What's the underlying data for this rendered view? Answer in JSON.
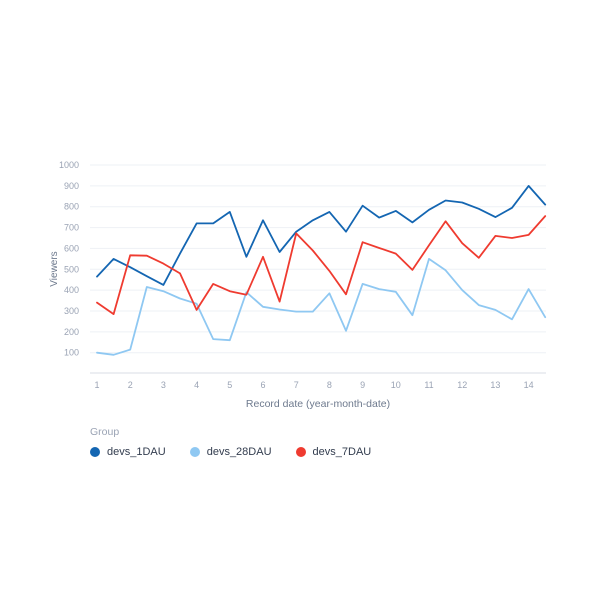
{
  "legend": {
    "title": "Group",
    "items": [
      {
        "label": "devs_1DAU",
        "color": "#1466b2"
      },
      {
        "label": "devs_28DAU",
        "color": "#8fc8f2"
      },
      {
        "label": "devs_7DAU",
        "color": "#ef3b30"
      }
    ]
  },
  "chart_data": {
    "type": "line",
    "title": "",
    "xlabel": "Record date (year-month-date)",
    "ylabel": "Viewers",
    "x_tick_labels": [
      "1",
      "2",
      "3",
      "4",
      "5",
      "6",
      "7",
      "8",
      "9",
      "10",
      "11",
      "12",
      "13",
      "14"
    ],
    "y_tick_labels": [
      "100",
      "200",
      "300",
      "400",
      "500",
      "600",
      "700",
      "800",
      "900",
      "1000"
    ],
    "y_ticks": [
      100,
      200,
      300,
      400,
      500,
      600,
      700,
      800,
      900,
      1000
    ],
    "ylim": [
      0,
      1000
    ],
    "xlim": [
      1,
      14.5
    ],
    "grid": "horizontal-only",
    "legend_position": "bottom-left",
    "x": [
      1,
      1.5,
      2,
      2.5,
      3,
      3.5,
      4,
      4.5,
      5,
      5.5,
      6,
      6.5,
      7,
      7.5,
      8,
      8.5,
      9,
      9.5,
      10,
      10.5,
      11,
      11.5,
      12,
      12.5,
      13,
      13.5,
      14,
      14.5
    ],
    "series": [
      {
        "name": "devs_1DAU",
        "color": "#1466b2",
        "values": [
          465,
          550,
          510,
          467,
          425,
          575,
          720,
          720,
          775,
          560,
          735,
          583,
          680,
          735,
          775,
          680,
          805,
          748,
          780,
          725,
          785,
          830,
          820,
          790,
          750,
          795,
          900,
          810
        ]
      },
      {
        "name": "devs_28DAU",
        "color": "#8fc8f2",
        "values": [
          100,
          90,
          115,
          415,
          395,
          360,
          335,
          165,
          160,
          390,
          320,
          307,
          297,
          297,
          385,
          205,
          430,
          405,
          392,
          280,
          550,
          495,
          400,
          328,
          305,
          260,
          405,
          270
        ]
      },
      {
        "name": "devs_7DAU",
        "color": "#ef3b30",
        "values": [
          340,
          285,
          567,
          565,
          527,
          480,
          305,
          430,
          395,
          378,
          560,
          345,
          672,
          590,
          492,
          380,
          630,
          602,
          575,
          497,
          615,
          730,
          625,
          555,
          660,
          650,
          665,
          755
        ]
      }
    ],
    "style": {
      "grid_color": "#eef1f5",
      "axis_line_color": "#d9dee5",
      "tick_label_color": "#9aa3b4",
      "axis_title_color": "#6e7a8e",
      "line_width": 1.8
    }
  },
  "layout_note": "line chart of viewers by record date"
}
